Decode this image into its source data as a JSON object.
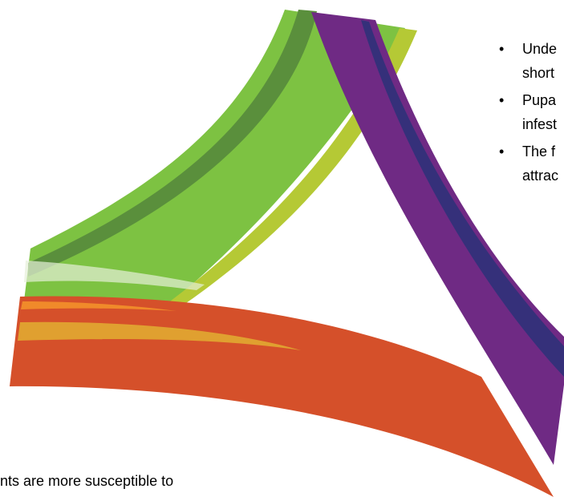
{
  "bullets": [
    [
      "Unde",
      "short"
    ],
    [
      "Pupa",
      "infest"
    ],
    [
      "The f",
      "attrac"
    ]
  ],
  "fragment": "nts are more susceptible to"
}
